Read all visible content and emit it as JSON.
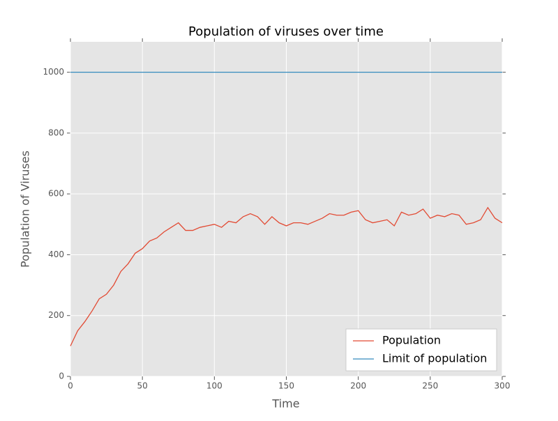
{
  "chart_data": {
    "type": "line",
    "title": "Population of viruses over time",
    "x_label": "Time",
    "y_label": "Population of Viruses",
    "xlim": [
      0,
      300
    ],
    "ylim": [
      0,
      1100
    ],
    "xticks": [
      0,
      50,
      100,
      150,
      200,
      250,
      300
    ],
    "yticks": [
      0,
      200,
      400,
      600,
      800,
      1000
    ],
    "grid": true,
    "legend": "lower right",
    "series": [
      {
        "name": "Population",
        "color": "#e24a33",
        "x": [
          0,
          5,
          10,
          15,
          20,
          25,
          30,
          35,
          40,
          45,
          50,
          55,
          60,
          65,
          70,
          75,
          80,
          85,
          90,
          95,
          100,
          105,
          110,
          115,
          120,
          125,
          130,
          135,
          140,
          145,
          150,
          155,
          160,
          165,
          170,
          175,
          180,
          185,
          190,
          195,
          200,
          205,
          210,
          215,
          220,
          225,
          230,
          235,
          240,
          245,
          250,
          255,
          260,
          265,
          270,
          275,
          280,
          285,
          290,
          295,
          300
        ],
        "values": [
          100,
          150,
          180,
          215,
          255,
          270,
          300,
          345,
          370,
          405,
          420,
          445,
          455,
          475,
          490,
          505,
          480,
          480,
          490,
          495,
          500,
          490,
          510,
          505,
          525,
          535,
          525,
          500,
          525,
          505,
          495,
          505,
          505,
          500,
          510,
          520,
          535,
          530,
          530,
          540,
          545,
          515,
          505,
          510,
          515,
          495,
          540,
          530,
          535,
          550,
          520,
          530,
          525,
          535,
          530,
          500,
          505,
          515,
          555,
          520,
          505
        ]
      },
      {
        "name": "Limit of population",
        "color": "#348abd",
        "x": [
          0,
          300
        ],
        "values": [
          1000,
          1000
        ]
      }
    ]
  }
}
